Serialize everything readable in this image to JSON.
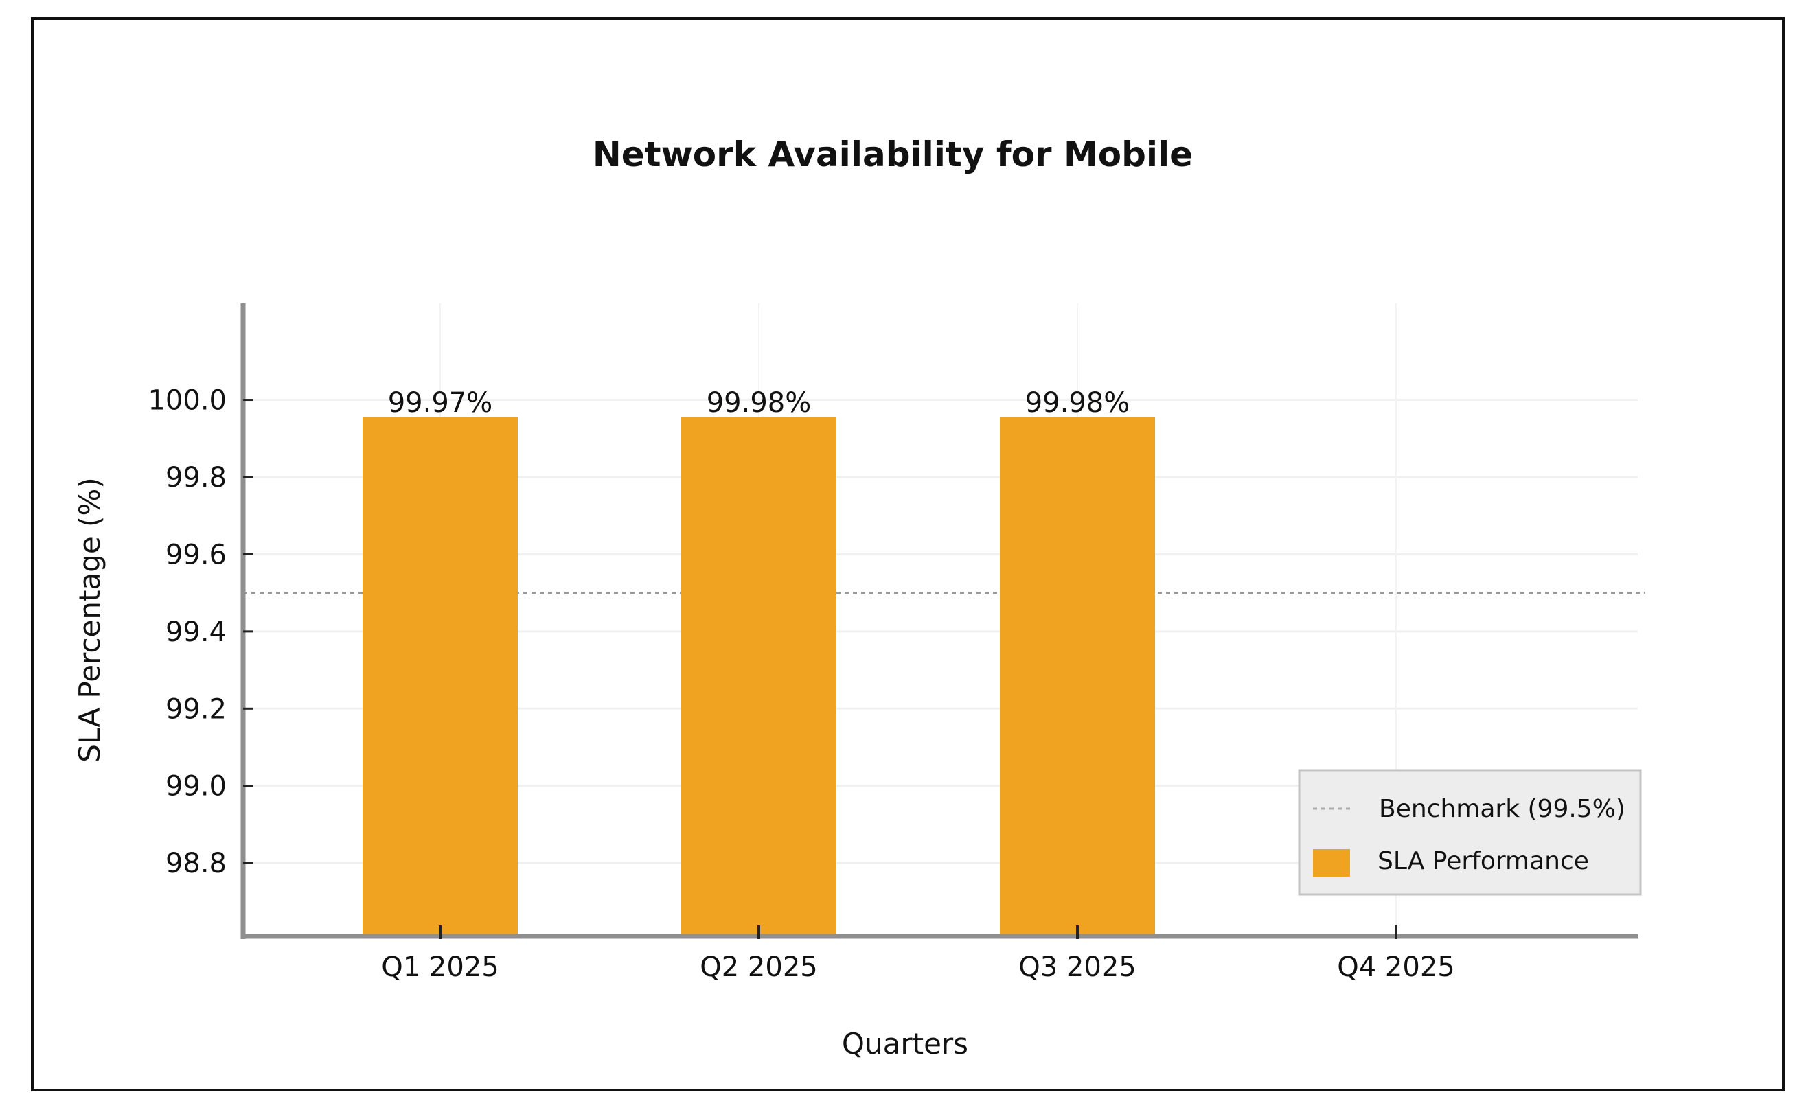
{
  "chart_data": {
    "type": "bar",
    "title": "Network Availability for Mobile",
    "xlabel": "Quarters",
    "ylabel": "SLA Percentage (%)",
    "categories": [
      "Q1 2025",
      "Q2 2025",
      "Q3 2025",
      "Q4 2025"
    ],
    "series": [
      {
        "name": "SLA Performance",
        "values": [
          99.97,
          99.98,
          99.98,
          null
        ],
        "labels": [
          "99.97%",
          "99.98%",
          "99.98%",
          null
        ],
        "color": "#F0A320"
      }
    ],
    "benchmark": {
      "name": "Benchmark (99.5%)",
      "value": 99.5,
      "color": "#999999",
      "style": "dotted"
    },
    "yticks": [
      98.8,
      99.0,
      99.2,
      99.4,
      99.6,
      99.8,
      100.0
    ],
    "ytick_labels": [
      "98.8",
      "99.0",
      "99.2",
      "99.4",
      "99.6",
      "99.8",
      "100.0"
    ],
    "ylim": [
      98.61,
      100.25
    ],
    "grid": true,
    "legend_position": "bottom-right"
  }
}
